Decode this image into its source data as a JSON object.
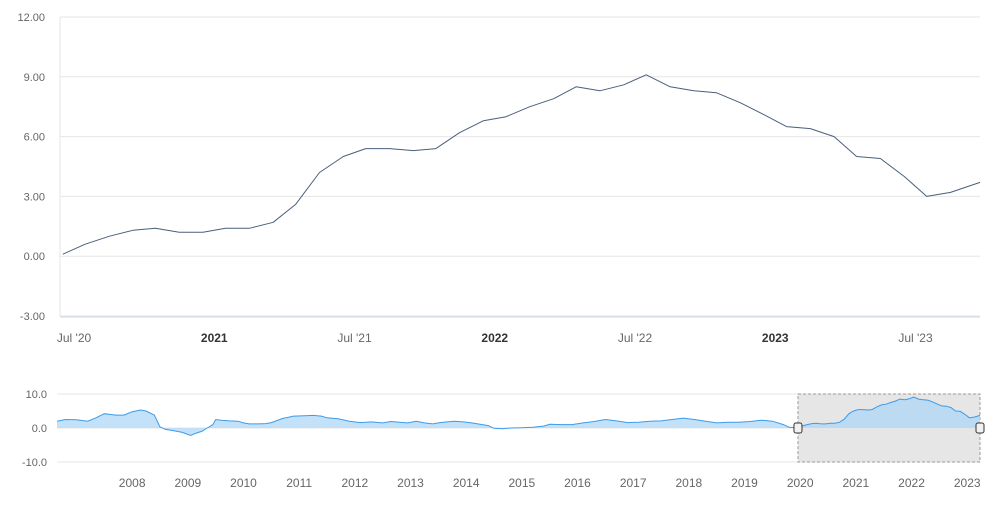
{
  "chart_data": {
    "type": "line",
    "grid": true,
    "colors": {
      "line": "#4a5f7c",
      "nav_area": "#a9d4f7",
      "nav_line": "#3d9be9",
      "selection": "#e6e6e6",
      "grid": "#e6e6e6"
    },
    "main": {
      "ylim": [
        -3,
        12
      ],
      "yticks": [
        "12.00",
        "9.00",
        "6.00",
        "3.00",
        "0.00",
        "-3.00"
      ],
      "xlim": [
        2020.45,
        2023.73
      ],
      "xticks": [
        {
          "label": "Jul '20",
          "x": 2020.5,
          "major": false
        },
        {
          "label": "2021",
          "x": 2021.0,
          "major": true
        },
        {
          "label": "Jul '21",
          "x": 2021.5,
          "major": false
        },
        {
          "label": "2022",
          "x": 2022.0,
          "major": true
        },
        {
          "label": "Jul '22",
          "x": 2022.5,
          "major": false
        },
        {
          "label": "2023",
          "x": 2023.0,
          "major": true
        },
        {
          "label": "Jul '23",
          "x": 2023.5,
          "major": false
        }
      ],
      "series": [
        {
          "x": [
            2020.46,
            2020.54,
            2020.625,
            2020.71,
            2020.79,
            2020.875,
            2020.96,
            2021.04,
            2021.125,
            2021.21,
            2021.29,
            2021.375,
            2021.46,
            2021.54,
            2021.625,
            2021.71,
            2021.79,
            2021.875,
            2021.96,
            2022.04,
            2022.125,
            2022.21,
            2022.29,
            2022.375,
            2022.46,
            2022.54,
            2022.625,
            2022.71,
            2022.79,
            2022.875,
            2022.96,
            2023.04,
            2023.125,
            2023.21,
            2023.29,
            2023.375,
            2023.46,
            2023.54,
            2023.625,
            2023.73
          ],
          "y": [
            0.1,
            0.6,
            1.0,
            1.3,
            1.4,
            1.2,
            1.2,
            1.4,
            1.4,
            1.7,
            2.6,
            4.2,
            5.0,
            5.4,
            5.4,
            5.3,
            5.4,
            6.2,
            6.8,
            7.0,
            7.5,
            7.9,
            8.5,
            8.3,
            8.6,
            9.1,
            8.5,
            8.3,
            8.2,
            7.7,
            7.1,
            6.5,
            6.4,
            6.0,
            5.0,
            4.9,
            4.0,
            3.0,
            3.2,
            3.7
          ]
        }
      ]
    },
    "navigator": {
      "type": "area",
      "ylim": [
        -10,
        10
      ],
      "yticks": [
        "10.0",
        "0.0",
        "-10.0"
      ],
      "xlim": [
        2007.15,
        2023.73
      ],
      "xticks": [
        "2008",
        "2009",
        "2010",
        "2011",
        "2012",
        "2013",
        "2014",
        "2015",
        "2016",
        "2017",
        "2018",
        "2019",
        "2020",
        "2021",
        "2022",
        "2023"
      ],
      "selection": [
        2020.46,
        2023.73
      ],
      "series": [
        {
          "x": [
            2007.15,
            2007.3,
            2007.5,
            2007.7,
            2007.85,
            2008.0,
            2008.1,
            2008.2,
            2008.35,
            2008.5,
            2008.65,
            2008.75,
            2008.9,
            2009.0,
            2009.1,
            2009.25,
            2009.4,
            2009.55,
            2009.65,
            2009.75,
            2009.85,
            2009.95,
            2010.0,
            2010.1,
            2010.25,
            2010.4,
            2010.5,
            2010.6,
            2010.75,
            2010.9,
            2011.0,
            2011.2,
            2011.4,
            2011.6,
            2011.75,
            2011.9,
            2012.0,
            2012.2,
            2012.4,
            2012.6,
            2012.8,
            2013.0,
            2013.15,
            2013.3,
            2013.45,
            2013.6,
            2013.75,
            2013.9,
            2014.0,
            2014.15,
            2014.3,
            2014.45,
            2014.6,
            2014.75,
            2014.9,
            2015.0,
            2015.15,
            2015.3,
            2015.5,
            2015.7,
            2015.9,
            2016.0,
            2016.2,
            2016.4,
            2016.6,
            2016.8,
            2017.0,
            2017.2,
            2017.4,
            2017.6,
            2017.8,
            2018.0,
            2018.2,
            2018.4,
            2018.6,
            2018.8,
            2019.0,
            2019.2,
            2019.4,
            2019.6,
            2019.8,
            2020.0,
            2020.2,
            2020.3,
            2020.46,
            2020.54,
            2020.625,
            2020.71,
            2020.79,
            2020.875,
            2020.96,
            2021.04,
            2021.125,
            2021.21,
            2021.29,
            2021.375,
            2021.46,
            2021.54,
            2021.625,
            2021.71,
            2021.79,
            2021.875,
            2021.96,
            2022.04,
            2022.125,
            2022.21,
            2022.29,
            2022.375,
            2022.46,
            2022.54,
            2022.625,
            2022.71,
            2022.79,
            2022.875,
            2022.96,
            2023.04,
            2023.125,
            2023.21,
            2023.29,
            2023.375,
            2023.46,
            2023.54,
            2023.625,
            2023.73
          ],
          "y": [
            2.0,
            2.5,
            2.4,
            2.0,
            3.0,
            4.2,
            4.0,
            3.8,
            3.8,
            4.8,
            5.3,
            5.0,
            3.8,
            0.3,
            -0.4,
            -0.8,
            -1.3,
            -2.2,
            -1.5,
            -1.0,
            0.0,
            1.0,
            2.5,
            2.3,
            2.1,
            2.0,
            1.5,
            1.2,
            1.2,
            1.3,
            1.6,
            2.8,
            3.5,
            3.6,
            3.7,
            3.5,
            3.0,
            2.7,
            2.0,
            1.6,
            1.8,
            1.5,
            1.9,
            1.7,
            1.5,
            2.0,
            1.5,
            1.2,
            1.5,
            1.8,
            2.0,
            1.8,
            1.5,
            1.1,
            0.7,
            -0.1,
            -0.2,
            0.0,
            0.1,
            0.2,
            0.6,
            1.1,
            1.0,
            1.0,
            1.5,
            1.9,
            2.5,
            2.1,
            1.6,
            1.7,
            2.0,
            2.1,
            2.5,
            2.9,
            2.5,
            2.0,
            1.5,
            1.7,
            1.7,
            1.9,
            2.3,
            2.0,
            1.0,
            0.2,
            0.1,
            0.6,
            1.0,
            1.3,
            1.4,
            1.2,
            1.2,
            1.4,
            1.4,
            1.7,
            2.6,
            4.2,
            5.0,
            5.4,
            5.4,
            5.3,
            5.4,
            6.2,
            6.8,
            7.0,
            7.5,
            7.9,
            8.5,
            8.3,
            8.6,
            9.1,
            8.5,
            8.3,
            8.2,
            7.7,
            7.1,
            6.5,
            6.4,
            6.0,
            5.0,
            4.9,
            4.0,
            3.0,
            3.2,
            3.7
          ]
        }
      ]
    }
  }
}
